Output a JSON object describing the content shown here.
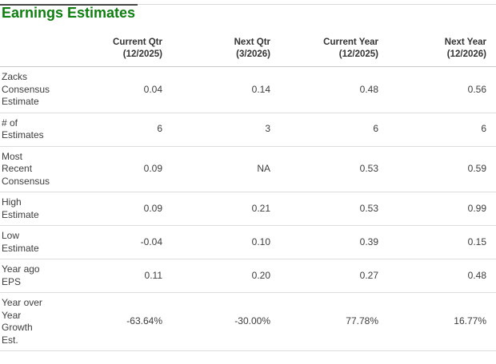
{
  "page": {
    "title": "Earnings Estimates"
  },
  "colors": {
    "title_green": "#0e7e10",
    "header_text": "#333333",
    "body_text": "#3d3d3d",
    "row_divider": "#dcdcdc",
    "header_divider": "#c9c9c9",
    "background": "#ffffff"
  },
  "table": {
    "columns": [
      {
        "label": "Current Qtr\n(12/2025)"
      },
      {
        "label": "Next Qtr\n(3/2026)"
      },
      {
        "label": "Current Year\n(12/2025)"
      },
      {
        "label": "Next Year\n(12/2026)"
      }
    ],
    "rows": [
      {
        "label": "Zacks\nConsensus\nEstimate",
        "values": [
          "0.04",
          "0.14",
          "0.48",
          "0.56"
        ]
      },
      {
        "label": "# of\nEstimates",
        "values": [
          "6",
          "3",
          "6",
          "6"
        ]
      },
      {
        "label": "Most\nRecent\nConsensus",
        "values": [
          "0.09",
          "NA",
          "0.53",
          "0.59"
        ]
      },
      {
        "label": "High\nEstimate",
        "values": [
          "0.09",
          "0.21",
          "0.53",
          "0.99"
        ]
      },
      {
        "label": "Low\nEstimate",
        "values": [
          "-0.04",
          "0.10",
          "0.39",
          "0.15"
        ]
      },
      {
        "label": "Year ago\nEPS",
        "values": [
          "0.11",
          "0.20",
          "0.27",
          "0.48"
        ]
      },
      {
        "label": "Year over\nYear\nGrowth\nEst.",
        "values": [
          "-63.64%",
          "-30.00%",
          "77.78%",
          "16.77%"
        ]
      }
    ]
  }
}
